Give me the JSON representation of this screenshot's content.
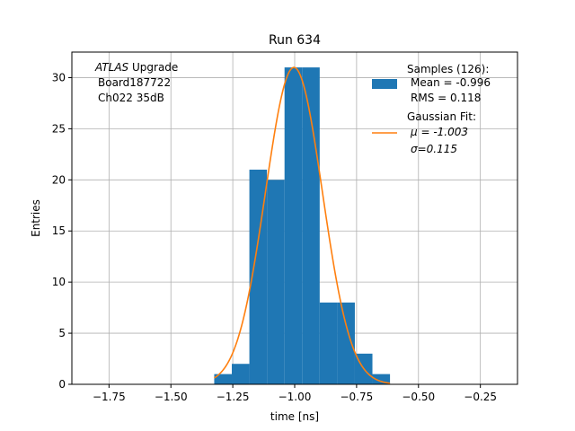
{
  "chart_data": {
    "type": "bar",
    "title": "Run 634",
    "xlabel": "time [ns]",
    "ylabel": "Entries",
    "xlim": [
      -1.9,
      -0.1
    ],
    "ylim": [
      0,
      32.5
    ],
    "grid": true,
    "xticks": [
      -1.75,
      -1.5,
      -1.25,
      -1.0,
      -0.75,
      -0.5,
      -0.25
    ],
    "xtick_labels": [
      "−1.75",
      "−1.50",
      "−1.25",
      "−1.00",
      "−0.75",
      "−0.50",
      "−0.25"
    ],
    "yticks": [
      0,
      5,
      10,
      15,
      20,
      25,
      30
    ],
    "ytick_labels": [
      "0",
      "5",
      "10",
      "15",
      "20",
      "25",
      "30"
    ],
    "histogram": {
      "bin_edges": [
        -1.325,
        -1.254,
        -1.183,
        -1.112,
        -1.041,
        -0.97,
        -0.899,
        -0.828,
        -0.757,
        -0.686,
        -0.615
      ],
      "counts": [
        1,
        2,
        21,
        20,
        31,
        31,
        8,
        8,
        3,
        1
      ],
      "color": "#1f77b4"
    },
    "fit": {
      "mu": -1.003,
      "sigma": 0.115,
      "amplitude": 31,
      "x_range": [
        -1.325,
        -0.615
      ],
      "color": "#ff7f0e"
    },
    "annotation": {
      "lines": [
        "ATLAS Upgrade",
        "Board187722",
        "Ch022 35dB"
      ],
      "italic_word": "ATLAS",
      "rest_of_first_line": " Upgrade"
    },
    "legend": {
      "placement": "top-right",
      "samples_lines": [
        "Samples (126):",
        "Mean = -0.996",
        "RMS = 0.118"
      ],
      "fit_lines": [
        "Gaussian Fit:",
        "μ = -1.003",
        "σ=0.115"
      ]
    }
  }
}
